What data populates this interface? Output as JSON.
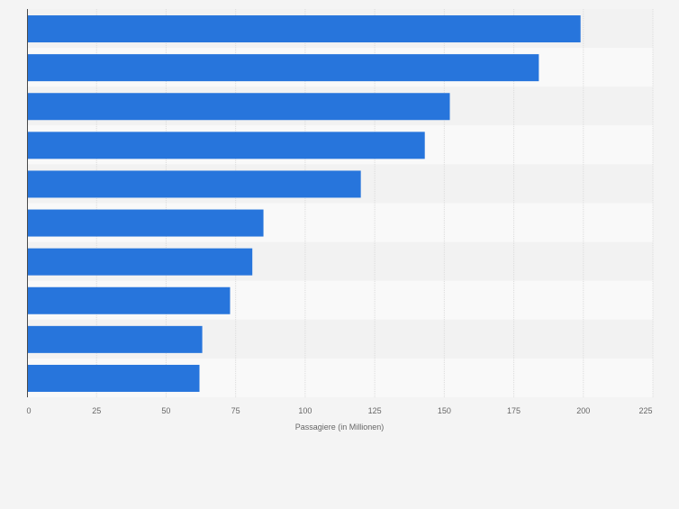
{
  "chart_data": {
    "type": "bar",
    "orientation": "horizontal",
    "title": "",
    "xlabel": "Passagiere (in Millionen)",
    "ylabel": "",
    "categories": [
      "",
      "",
      "",
      "",
      "",
      "",
      "",
      "",
      "",
      ""
    ],
    "values": [
      199,
      184,
      152,
      143,
      120,
      85,
      81,
      73,
      63,
      62
    ],
    "xlim": [
      0,
      225
    ],
    "xticks": [
      0,
      25,
      50,
      75,
      100,
      125,
      150,
      175,
      200,
      225
    ],
    "grid": true,
    "legend": "none",
    "colors": {
      "bar": "#2775dc",
      "band_light": "#f9f9f9",
      "band_dark": "#f2f2f2",
      "page_background": "#f4f4f4",
      "grid": "#dcdcdc",
      "axis": "#4a4a4a",
      "tick_text": "#666666"
    }
  }
}
